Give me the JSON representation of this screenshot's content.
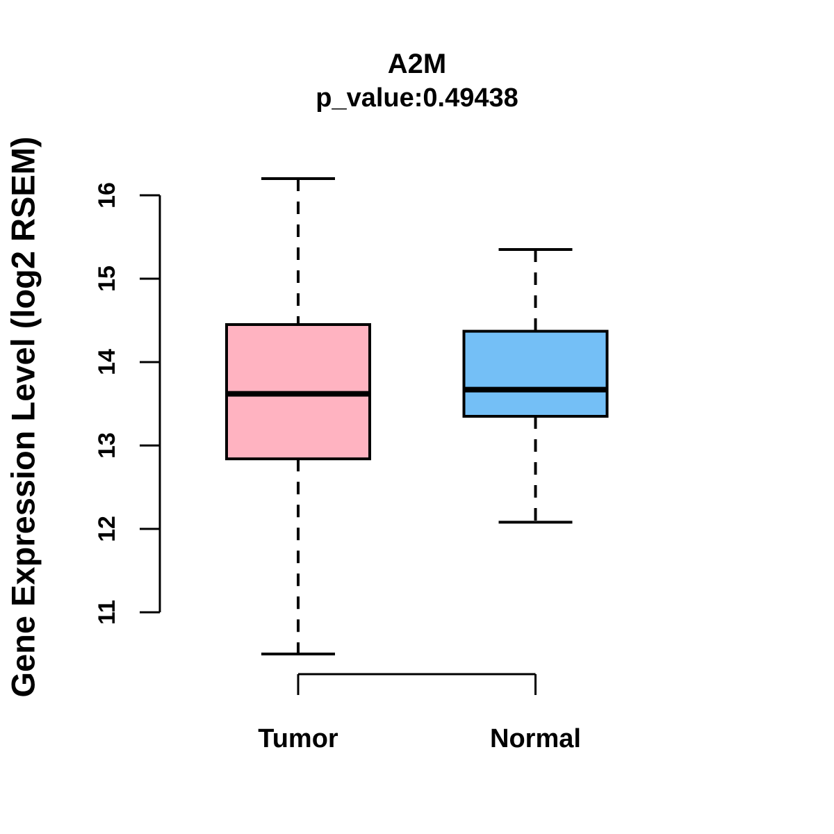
{
  "chart_data": {
    "type": "boxplot",
    "title": "A2M",
    "subtitle": "p_value:0.49438",
    "ylabel": "Gene Expression Level (log2 RSEM)",
    "xlabel": "",
    "categories": [
      "Tumor",
      "Normal"
    ],
    "series": [
      {
        "name": "Tumor",
        "color": "#FFB3C1",
        "whisker_low": 10.5,
        "q1": 12.84,
        "median": 13.62,
        "q3": 14.45,
        "whisker_high": 16.2
      },
      {
        "name": "Normal",
        "color": "#74BFF6",
        "whisker_low": 12.08,
        "q1": 13.35,
        "median": 13.67,
        "q3": 14.37,
        "whisker_high": 15.35
      }
    ],
    "y_ticks": [
      11,
      12,
      13,
      14,
      15,
      16
    ],
    "y_axis_range": [
      11,
      16
    ],
    "grid": false,
    "legend": "none",
    "line_color": "#000000",
    "background": "#FFFFFF"
  }
}
